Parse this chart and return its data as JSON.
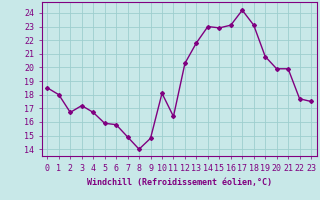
{
  "x": [
    0,
    1,
    2,
    3,
    4,
    5,
    6,
    7,
    8,
    9,
    10,
    11,
    12,
    13,
    14,
    15,
    16,
    17,
    18,
    19,
    20,
    21,
    22,
    23
  ],
  "y": [
    18.5,
    18.0,
    16.7,
    17.2,
    16.7,
    15.9,
    15.8,
    14.9,
    14.0,
    14.8,
    18.1,
    16.4,
    20.3,
    21.8,
    23.0,
    22.9,
    23.1,
    24.2,
    23.1,
    20.8,
    19.9,
    19.9,
    17.7,
    17.5
  ],
  "color": "#800080",
  "bg_color": "#c8e8e8",
  "grid_color": "#9ecece",
  "ylabel_values": [
    14,
    15,
    16,
    17,
    18,
    19,
    20,
    21,
    22,
    23,
    24
  ],
  "ylim": [
    13.5,
    24.8
  ],
  "xlim": [
    -0.5,
    23.5
  ],
  "xlabel": "Windchill (Refroidissement éolien,°C)",
  "xlabel_fontsize": 6.0,
  "tick_fontsize": 6.0,
  "marker": "D",
  "markersize": 2.0,
  "linewidth": 1.0
}
